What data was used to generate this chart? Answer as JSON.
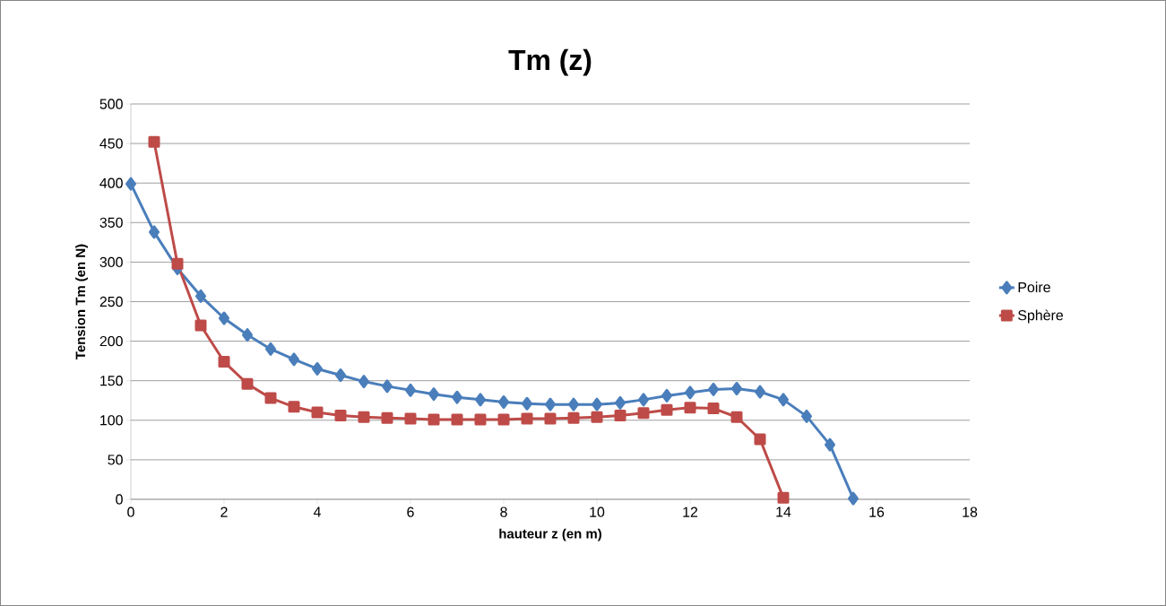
{
  "chart_data": {
    "type": "line",
    "title": "Tm (z)",
    "xlabel": "hauteur z (en m)",
    "ylabel": "Tension Tm (en N)",
    "xlim": [
      0,
      18
    ],
    "xticks": [
      0,
      2,
      4,
      6,
      8,
      10,
      12,
      14,
      16,
      18
    ],
    "ylim": [
      0,
      500
    ],
    "yticks": [
      0,
      50,
      100,
      150,
      200,
      250,
      300,
      350,
      400,
      450,
      500
    ],
    "grid": "y",
    "legend": "right",
    "line_style": "solid",
    "series": [
      {
        "name": "Poire",
        "color": "#4a7ebb",
        "marker": "diamond",
        "x": [
          0,
          0.5,
          1,
          1.5,
          2,
          2.5,
          3,
          3.5,
          4,
          4.5,
          5,
          5.5,
          6,
          6.5,
          7,
          7.5,
          8,
          8.5,
          9,
          9.5,
          10,
          10.5,
          11,
          11.5,
          12,
          12.5,
          13,
          13.5,
          14,
          14.5,
          15,
          15.5
        ],
        "values": [
          399,
          338,
          292,
          257,
          229,
          208,
          190,
          177,
          165,
          157,
          149,
          143,
          138,
          133,
          129,
          126,
          123,
          121,
          120,
          120,
          120,
          122,
          126,
          131,
          135,
          139,
          140,
          136,
          126,
          105,
          69,
          1
        ]
      },
      {
        "name": "Sphère",
        "color": "#be4b48",
        "marker": "square",
        "x": [
          0.5,
          1,
          1.5,
          2,
          2.5,
          3,
          3.5,
          4,
          4.5,
          5,
          5.5,
          6,
          6.5,
          7,
          7.5,
          8,
          8.5,
          9,
          9.5,
          10,
          10.5,
          11,
          11.5,
          12,
          12.5,
          13,
          13.5,
          14
        ],
        "values": [
          452,
          298,
          220,
          174,
          146,
          128,
          117,
          110,
          106,
          104,
          103,
          102,
          101,
          101,
          101,
          101,
          102,
          102,
          103,
          104,
          106,
          109,
          113,
          116,
          115,
          104,
          76,
          2
        ]
      }
    ]
  }
}
